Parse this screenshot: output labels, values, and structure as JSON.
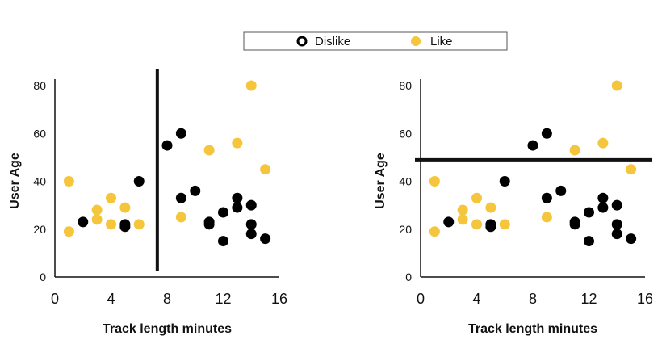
{
  "legend": {
    "dislike_label": "Dislike",
    "like_label": "Like"
  },
  "colors": {
    "dislike": "#000000",
    "like": "#F5C53C",
    "axis": "#111111"
  },
  "chart_data": [
    {
      "type": "scatter",
      "title": "",
      "xlabel": "Track length minutes",
      "ylabel": "User Age",
      "xlim": [
        0,
        16
      ],
      "ylim": [
        0,
        80
      ],
      "x_ticks": [
        "0",
        "4",
        "8",
        "12",
        "16"
      ],
      "y_ticks": [
        "0",
        "20",
        "40",
        "60",
        "80"
      ],
      "decision_boundary": {
        "orientation": "vertical",
        "x": 7.3
      },
      "series": [
        {
          "name": "Dislike",
          "points": [
            [
              2,
              23
            ],
            [
              5,
              22
            ],
            [
              5,
              21
            ],
            [
              6,
              40
            ],
            [
              8,
              55
            ],
            [
              9,
              60
            ],
            [
              9,
              33
            ],
            [
              10,
              36
            ],
            [
              11,
              23
            ],
            [
              11,
              22
            ],
            [
              12,
              27
            ],
            [
              12,
              15
            ],
            [
              13,
              33
            ],
            [
              13,
              29
            ],
            [
              14,
              30
            ],
            [
              14,
              22
            ],
            [
              14,
              18
            ],
            [
              15,
              16
            ]
          ]
        },
        {
          "name": "Like",
          "points": [
            [
              1,
              40
            ],
            [
              1,
              19
            ],
            [
              3,
              28
            ],
            [
              3,
              24
            ],
            [
              4,
              33
            ],
            [
              4,
              22
            ],
            [
              5,
              29
            ],
            [
              6,
              22
            ],
            [
              9,
              25
            ],
            [
              11,
              53
            ],
            [
              13,
              56
            ],
            [
              14,
              80
            ],
            [
              15,
              45
            ]
          ]
        }
      ]
    },
    {
      "type": "scatter",
      "title": "",
      "xlabel": "Track length minutes",
      "ylabel": "User Age",
      "xlim": [
        0,
        16
      ],
      "ylim": [
        0,
        80
      ],
      "x_ticks": [
        "0",
        "4",
        "8",
        "12",
        "16"
      ],
      "y_ticks": [
        "0",
        "20",
        "40",
        "60",
        "80"
      ],
      "decision_boundary": {
        "orientation": "horizontal",
        "y": 49
      },
      "series": [
        {
          "name": "Dislike",
          "points": [
            [
              2,
              23
            ],
            [
              5,
              22
            ],
            [
              5,
              21
            ],
            [
              6,
              40
            ],
            [
              8,
              55
            ],
            [
              9,
              60
            ],
            [
              9,
              33
            ],
            [
              10,
              36
            ],
            [
              11,
              23
            ],
            [
              11,
              22
            ],
            [
              12,
              27
            ],
            [
              12,
              15
            ],
            [
              13,
              33
            ],
            [
              13,
              29
            ],
            [
              14,
              30
            ],
            [
              14,
              22
            ],
            [
              14,
              18
            ],
            [
              15,
              16
            ]
          ]
        },
        {
          "name": "Like",
          "points": [
            [
              1,
              40
            ],
            [
              1,
              19
            ],
            [
              3,
              28
            ],
            [
              3,
              24
            ],
            [
              4,
              33
            ],
            [
              4,
              22
            ],
            [
              5,
              29
            ],
            [
              6,
              22
            ],
            [
              9,
              25
            ],
            [
              11,
              53
            ],
            [
              13,
              56
            ],
            [
              14,
              80
            ],
            [
              15,
              45
            ]
          ]
        }
      ]
    }
  ]
}
